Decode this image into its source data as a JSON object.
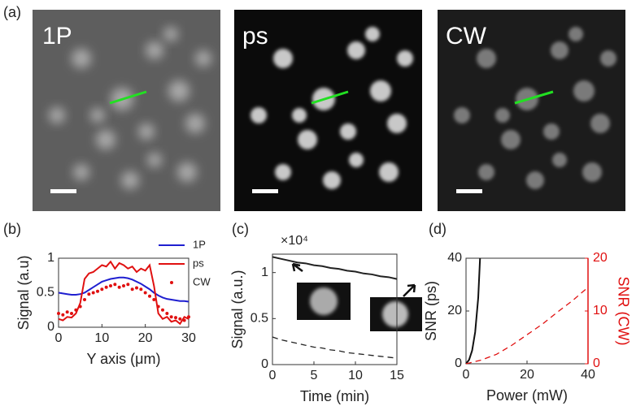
{
  "panel_labels": [
    "(a)",
    "(b)",
    "(c)",
    "(d)"
  ],
  "image_labels": [
    "1P",
    "ps",
    "CW"
  ],
  "chart_data": [
    {
      "type": "line",
      "xlabel": "Y axis (μm)",
      "ylabel": "Signal (a.u)",
      "x": [
        0,
        1,
        2,
        3,
        4,
        5,
        6,
        7,
        8,
        9,
        10,
        11,
        12,
        13,
        14,
        15,
        16,
        17,
        18,
        19,
        20,
        21,
        22,
        23,
        24,
        25,
        26,
        27,
        28,
        29,
        30
      ],
      "xlim": [
        0,
        30
      ],
      "xticks": [
        0,
        10,
        20,
        30
      ],
      "ylim": [
        0,
        1
      ],
      "yticks": [
        0,
        0.5,
        1
      ],
      "series": [
        {
          "name": "1P",
          "color": "#1f1fd0",
          "style": "solid",
          "values": [
            0.5,
            0.49,
            0.48,
            0.47,
            0.47,
            0.48,
            0.5,
            0.54,
            0.58,
            0.62,
            0.66,
            0.68,
            0.7,
            0.71,
            0.72,
            0.72,
            0.71,
            0.69,
            0.66,
            0.63,
            0.59,
            0.55,
            0.5,
            0.46,
            0.43,
            0.41,
            0.4,
            0.39,
            0.38,
            0.38,
            0.37
          ]
        },
        {
          "name": "ps",
          "color": "#e01010",
          "style": "solid",
          "values": [
            0.12,
            0.1,
            0.15,
            0.14,
            0.2,
            0.35,
            0.7,
            0.78,
            0.8,
            0.85,
            0.9,
            0.88,
            0.95,
            0.85,
            0.93,
            0.9,
            0.85,
            0.88,
            0.8,
            0.85,
            0.82,
            0.9,
            0.6,
            0.2,
            0.12,
            0.15,
            0.08,
            0.1,
            0.05,
            0.15,
            0.12
          ]
        },
        {
          "name": "CW",
          "color": "#e01010",
          "style": "markers",
          "values": [
            0.2,
            0.18,
            0.22,
            0.2,
            0.25,
            0.3,
            0.4,
            0.48,
            0.5,
            0.52,
            0.55,
            0.58,
            0.6,
            0.62,
            0.58,
            0.6,
            0.62,
            0.55,
            0.57,
            0.55,
            0.5,
            0.45,
            0.4,
            0.3,
            0.25,
            0.2,
            0.15,
            0.14,
            0.12,
            0.1,
            0.15
          ]
        }
      ]
    },
    {
      "type": "line",
      "xlabel": "Time (min)",
      "ylabel": "Signal (a.u.)",
      "axis_multiplier": "×10⁴",
      "x": [
        0,
        1,
        2,
        3,
        4,
        5,
        6,
        7,
        8,
        9,
        10,
        11,
        12,
        13,
        14,
        15
      ],
      "xlim": [
        0,
        15
      ],
      "xticks": [
        0,
        5,
        10,
        15
      ],
      "ylim": [
        0,
        1.2
      ],
      "yticks": [
        0,
        0.5,
        1
      ],
      "series": [
        {
          "color": "#222222",
          "style": "solid",
          "values": [
            1.17,
            1.15,
            1.13,
            1.11,
            1.1,
            1.08,
            1.07,
            1.05,
            1.04,
            1.02,
            1.01,
            0.99,
            0.98,
            0.96,
            0.95,
            0.93
          ]
        },
        {
          "color": "#222222",
          "style": "dashed",
          "values": [
            0.3,
            0.27,
            0.25,
            0.23,
            0.21,
            0.19,
            0.18,
            0.16,
            0.15,
            0.13,
            0.12,
            0.11,
            0.1,
            0.09,
            0.08,
            0.07
          ]
        }
      ]
    },
    {
      "type": "line",
      "xlabel": "Power (mW)",
      "ylabel": "SNR (ps)",
      "y2label": "SNR (CW)",
      "xlim": [
        0,
        40
      ],
      "xticks": [
        0,
        20,
        40
      ],
      "ylim": [
        0,
        40
      ],
      "yticks": [
        0,
        20,
        40
      ],
      "y2lim": [
        0,
        20
      ],
      "y2ticks": [
        0,
        10,
        20
      ],
      "series": [
        {
          "color": "#111111",
          "style": "solid",
          "x": [
            0,
            1,
            2,
            3,
            4,
            4.6
          ],
          "values": [
            0,
            1.5,
            5,
            12,
            25,
            40
          ]
        },
        {
          "color": "#e01010",
          "style": "dashed",
          "axis": "y2",
          "x": [
            0,
            5,
            10,
            15,
            20,
            25,
            30,
            35,
            40
          ],
          "values": [
            0,
            0.7,
            1.8,
            3.5,
            5.5,
            7.5,
            9.8,
            12,
            14.5
          ]
        }
      ]
    }
  ]
}
